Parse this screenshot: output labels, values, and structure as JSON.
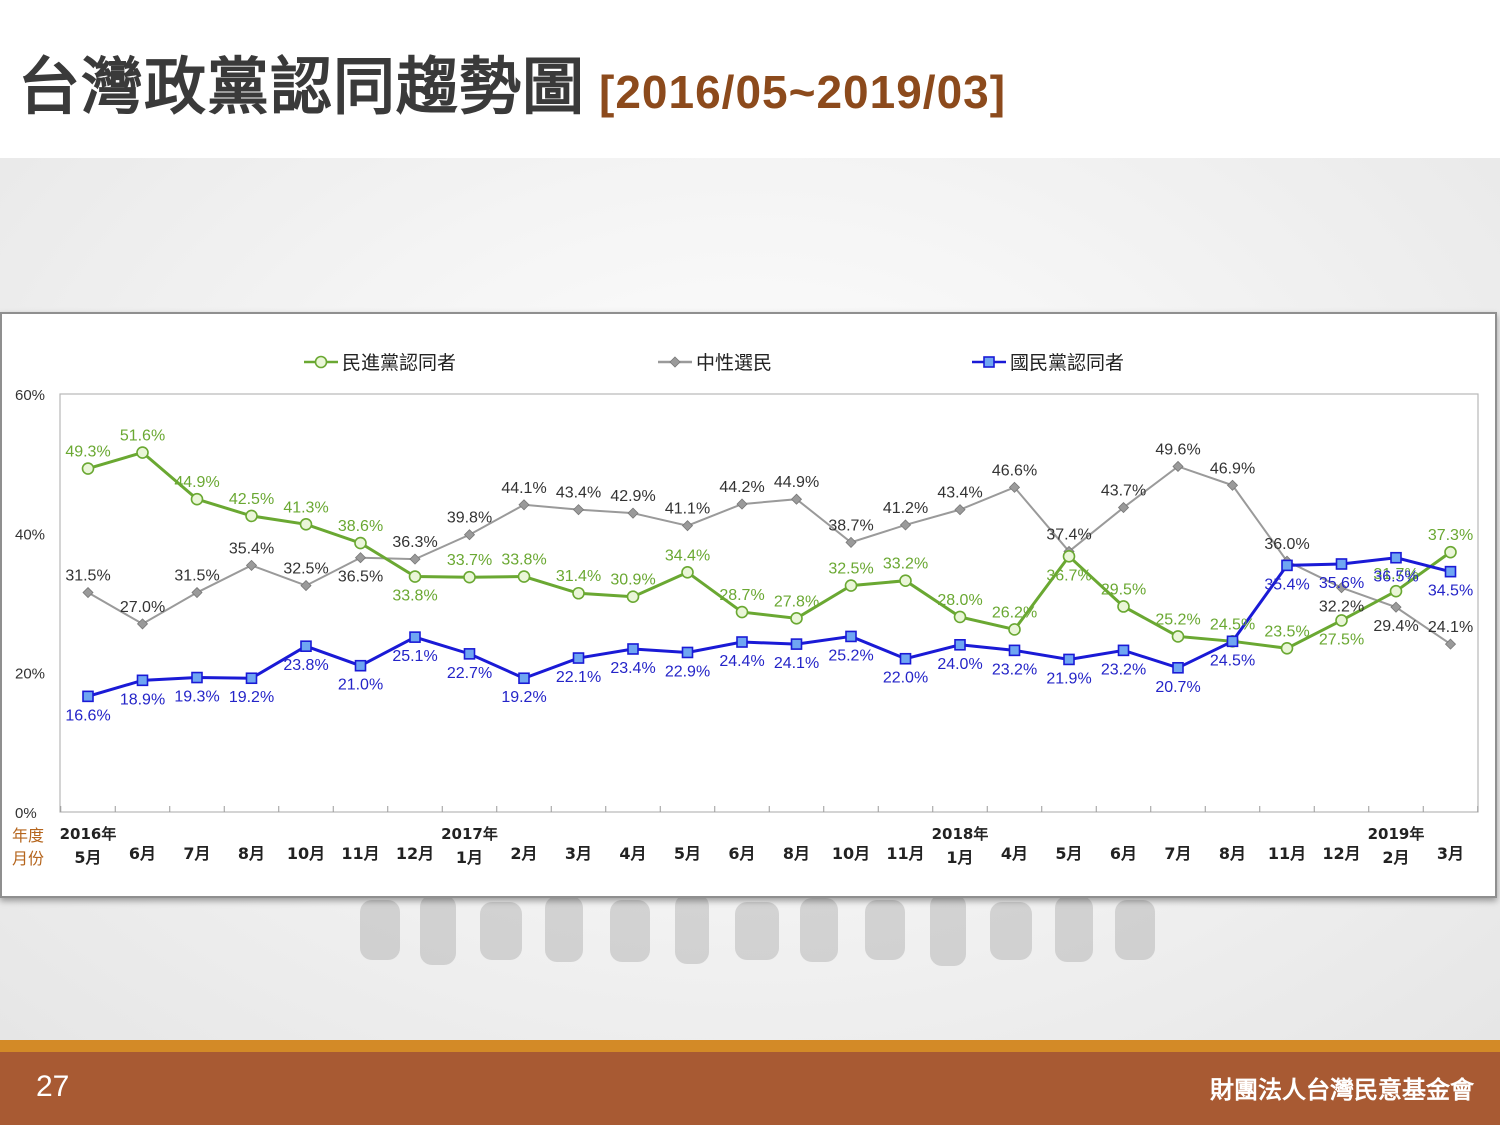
{
  "title": "台灣政黨認同趨勢圖",
  "subtitle": "[2016/05~2019/03]",
  "footer": {
    "page_number": "27",
    "organization": "財團法人台灣民意基金會"
  },
  "colors": {
    "dpp": "#6aa832",
    "dpp_label": "#6aa832",
    "neutral": "#9a9a9a",
    "neutral_label": "#333333",
    "kmt": "#1a1ad6",
    "kmt_label": "#2424c8",
    "axis_label": "#b5651d"
  },
  "chart_data": {
    "type": "line",
    "legend_position": "top",
    "grid": false,
    "ylim": [
      0,
      60
    ],
    "yticks": [
      "0%",
      "20%",
      "40%",
      "60%"
    ],
    "ytick_values": [
      0,
      20,
      40,
      60
    ],
    "x_axis_row_labels": [
      "年度",
      "月份"
    ],
    "year_labels": [
      "2016年",
      "2017年",
      "2018年",
      "2019年"
    ],
    "year_label_index": [
      0,
      7,
      16,
      24
    ],
    "categories": [
      "5月",
      "6月",
      "7月",
      "8月",
      "10月",
      "11月",
      "12月",
      "1月",
      "2月",
      "3月",
      "4月",
      "5月",
      "6月",
      "8月",
      "10月",
      "11月",
      "1月",
      "4月",
      "5月",
      "6月",
      "7月",
      "8月",
      "11月",
      "12月",
      "2月",
      "3月"
    ],
    "series": [
      {
        "name": "民進黨認同者",
        "key": "dpp",
        "marker": "circle",
        "values": [
          49.3,
          51.6,
          44.9,
          42.5,
          41.3,
          38.6,
          33.8,
          33.7,
          33.8,
          31.4,
          30.9,
          34.4,
          28.7,
          27.8,
          32.5,
          33.2,
          28.0,
          26.2,
          36.7,
          29.5,
          25.2,
          24.5,
          23.5,
          27.5,
          31.7,
          37.3
        ],
        "labels": [
          "49.3%",
          "51.6%",
          "44.9%",
          "42.5%",
          "41.3%",
          "38.6%",
          "33.8%",
          "33.7%",
          "33.8%",
          "31.4%",
          "30.9%",
          "34.4%",
          "28.7%",
          "27.8%",
          "32.5%",
          "33.2%",
          "28.0%",
          "26.2%",
          "36.7%",
          "29.5%",
          "25.2%",
          "24.5%",
          "23.5%",
          "27.5%",
          "31.7%",
          "37.3%"
        ]
      },
      {
        "name": "中性選民",
        "key": "neutral",
        "marker": "diamond",
        "values": [
          31.5,
          27.0,
          31.5,
          35.4,
          32.5,
          36.5,
          36.3,
          39.8,
          44.1,
          43.4,
          42.9,
          41.1,
          44.2,
          44.9,
          38.7,
          41.2,
          43.4,
          46.6,
          37.4,
          43.7,
          49.6,
          46.9,
          36.0,
          32.2,
          29.4,
          24.1
        ],
        "labels": [
          "31.5%",
          "27.0%",
          "31.5%",
          "35.4%",
          "32.5%",
          "36.5%",
          "36.3%",
          "39.8%",
          "44.1%",
          "43.4%",
          "42.9%",
          "41.1%",
          "44.2%",
          "44.9%",
          "38.7%",
          "41.2%",
          "43.4%",
          "46.6%",
          "37.4%",
          "43.7%",
          "49.6%",
          "46.9%",
          "36.0%",
          "32.2%",
          "29.4%",
          "24.1%"
        ]
      },
      {
        "name": "國民黨認同者",
        "key": "kmt",
        "marker": "square",
        "values": [
          16.6,
          18.9,
          19.3,
          19.2,
          23.8,
          21.0,
          25.1,
          22.7,
          19.2,
          22.1,
          23.4,
          22.9,
          24.4,
          24.1,
          25.2,
          22.0,
          24.0,
          23.2,
          21.9,
          23.2,
          20.7,
          24.5,
          35.4,
          35.6,
          36.5,
          34.5
        ],
        "labels": [
          "16.6%",
          "18.9%",
          "19.3%",
          "19.2%",
          "23.8%",
          "21.0%",
          "25.1%",
          "22.7%",
          "19.2%",
          "22.1%",
          "23.4%",
          "22.9%",
          "24.4%",
          "24.1%",
          "25.2%",
          "22.0%",
          "24.0%",
          "23.2%",
          "21.9%",
          "23.2%",
          "20.7%",
          "24.5%",
          "35.4%",
          "35.6%",
          "36.5%",
          "34.5%"
        ]
      }
    ]
  }
}
